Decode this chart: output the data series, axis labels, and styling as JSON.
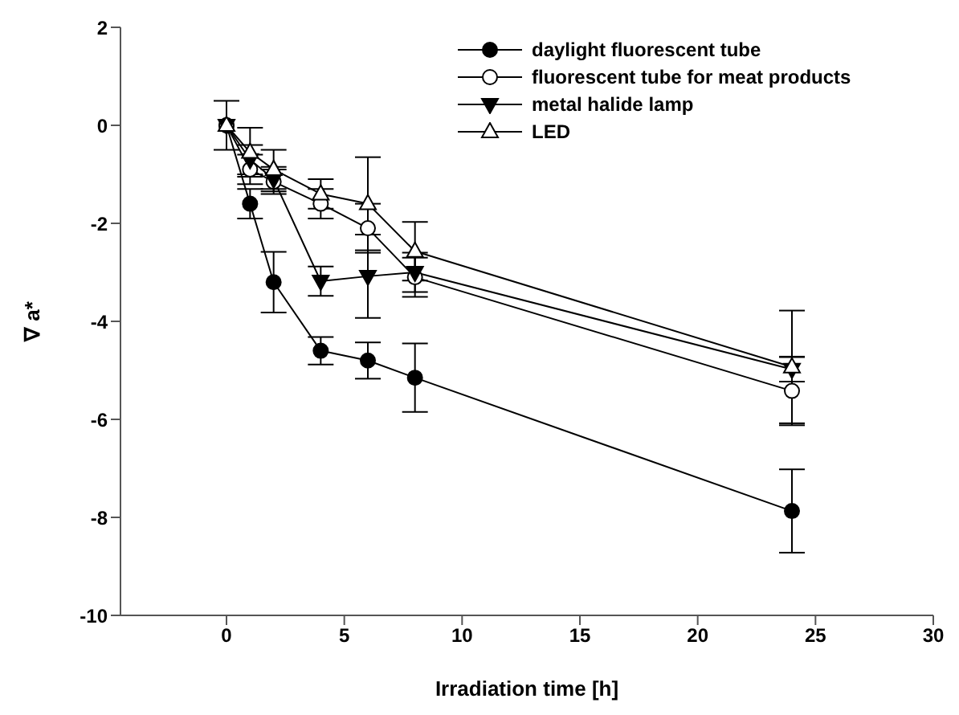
{
  "chart_data": {
    "type": "line",
    "xlabel": "Irradiation time [h]",
    "ylabel": "∇ a*",
    "x": [
      0,
      1,
      2,
      4,
      6,
      8,
      24
    ],
    "series": [
      {
        "name": "daylight fluorescent tube",
        "color": "#000000",
        "marker": "circle",
        "values": [
          0,
          -1.6,
          -3.2,
          -4.6,
          -4.8,
          -5.15,
          -7.87
        ],
        "errors": [
          0.5,
          0.3,
          0.62,
          0.28,
          0.37,
          0.7,
          0.85
        ]
      },
      {
        "name": "fluorescent tube for meat products",
        "color": "#000000",
        "marker": "circle-open",
        "values": [
          0,
          -0.9,
          -1.15,
          -1.6,
          -2.1,
          -3.1,
          -5.42
        ],
        "errors": [
          null,
          0.3,
          0.25,
          0.3,
          0.5,
          0.4,
          0.7
        ]
      },
      {
        "name": "metal halide lamp",
        "color": "#000000",
        "marker": "triangle-down",
        "values": [
          0,
          -0.7,
          -1.1,
          -3.18,
          -3.08,
          -3.0,
          -4.98
        ],
        "errors": [
          null,
          0.3,
          0.25,
          0.3,
          0.85,
          0.4,
          0.25
        ]
      },
      {
        "name": "LED",
        "color": "#000000",
        "marker": "triangle-open",
        "values": [
          0,
          -0.55,
          -0.9,
          -1.4,
          -1.6,
          -2.57,
          -4.93
        ],
        "errors": [
          null,
          0.5,
          0.4,
          0.3,
          0.95,
          0.6,
          1.15
        ]
      }
    ],
    "xlim": [
      -4.5,
      30
    ],
    "xticks": [
      0,
      5,
      10,
      15,
      20,
      25,
      30
    ],
    "ylim": [
      -10,
      2
    ],
    "yticks": [
      -10,
      -8,
      -6,
      -4,
      -2,
      0,
      2
    ],
    "grid": false,
    "legend": "top right",
    "line_style": "solid"
  }
}
